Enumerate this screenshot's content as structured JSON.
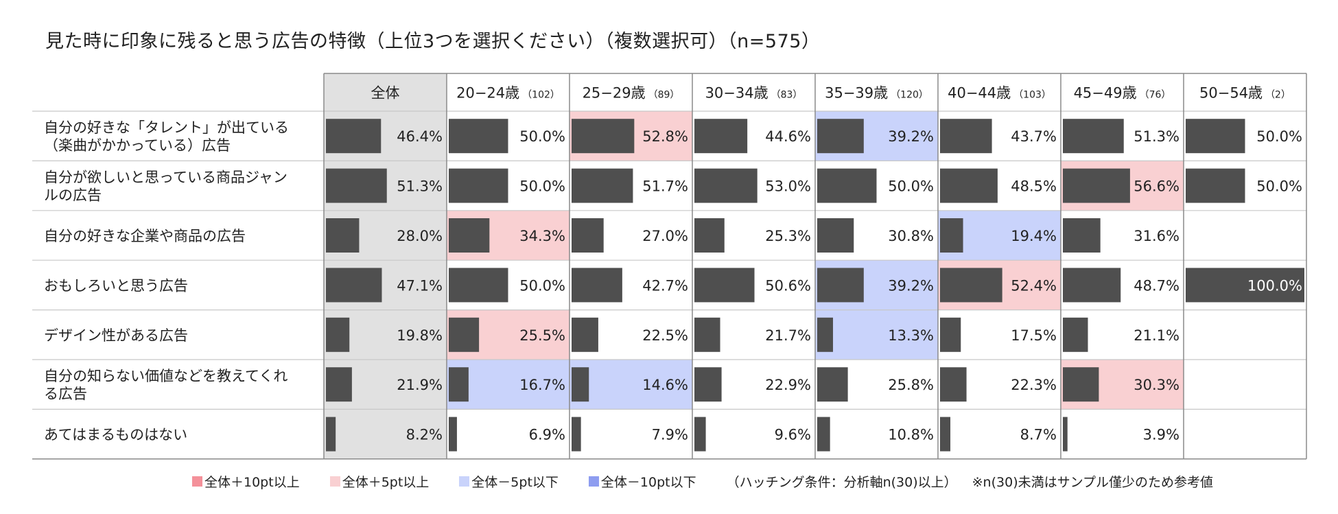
{
  "title": "見た時に印象に残ると思う広告の特徴（上位3つを選択ください）（複数選択可）（n=575）",
  "chart_data": {
    "type": "table",
    "value_unit": "%",
    "columns": [
      {
        "label": "全体",
        "n": ""
      },
      {
        "label": "20−24歳",
        "n": "（102）"
      },
      {
        "label": "25−29歳",
        "n": "（89）"
      },
      {
        "label": "30−34歳",
        "n": "（83）"
      },
      {
        "label": "35−39歳",
        "n": "（120）"
      },
      {
        "label": "40−44歳",
        "n": "（103）"
      },
      {
        "label": "45−49歳",
        "n": "（76）"
      },
      {
        "label": "50−54歳",
        "n": "（2）"
      }
    ],
    "rows": [
      {
        "label": "自分の好きな「タレント」が出ている（楽曲がかかっている）広告",
        "values": [
          46.4,
          50.0,
          52.8,
          44.6,
          39.2,
          43.7,
          51.3,
          50.0
        ]
      },
      {
        "label": "自分が欲しいと思っている商品ジャンルの広告",
        "values": [
          51.3,
          50.0,
          51.7,
          53.0,
          50.0,
          48.5,
          56.6,
          50.0
        ]
      },
      {
        "label": "自分の好きな企業や商品の広告",
        "values": [
          28.0,
          34.3,
          27.0,
          25.3,
          30.8,
          19.4,
          31.6,
          null
        ]
      },
      {
        "label": "おもしろいと思う広告",
        "values": [
          47.1,
          50.0,
          42.7,
          50.6,
          39.2,
          52.4,
          48.7,
          100.0
        ]
      },
      {
        "label": "デザイン性がある広告",
        "values": [
          19.8,
          25.5,
          22.5,
          21.7,
          13.3,
          17.5,
          21.1,
          null
        ]
      },
      {
        "label": "自分の知らない価値などを教えてくれる広告",
        "values": [
          21.9,
          16.7,
          14.6,
          22.9,
          25.8,
          22.3,
          30.3,
          null
        ]
      },
      {
        "label": "あてはまるものはない",
        "values": [
          8.2,
          6.9,
          7.9,
          9.6,
          10.8,
          8.7,
          3.9,
          null
        ]
      }
    ],
    "highlights": [
      {
        "row": 0,
        "col": 2,
        "level": "plus5"
      },
      {
        "row": 0,
        "col": 4,
        "level": "minus5"
      },
      {
        "row": 1,
        "col": 6,
        "level": "plus5"
      },
      {
        "row": 2,
        "col": 1,
        "level": "plus5"
      },
      {
        "row": 2,
        "col": 5,
        "level": "minus5"
      },
      {
        "row": 3,
        "col": 4,
        "level": "minus5"
      },
      {
        "row": 3,
        "col": 5,
        "level": "plus5"
      },
      {
        "row": 4,
        "col": 1,
        "level": "plus5"
      },
      {
        "row": 4,
        "col": 4,
        "level": "minus5"
      },
      {
        "row": 5,
        "col": 1,
        "level": "minus5"
      },
      {
        "row": 5,
        "col": 2,
        "level": "minus5"
      },
      {
        "row": 5,
        "col": 6,
        "level": "plus5"
      }
    ],
    "bar_max": 100
  },
  "colors": {
    "plus10": "#f4919a",
    "plus5": "#f9d0d2",
    "minus5": "#c9d3fb",
    "minus10": "#8e9df0",
    "total_bg": "#e1e1e1",
    "bar": "#4f4f4f",
    "grid": "#c8c8c8",
    "border": "#8a8a8a"
  },
  "legend": {
    "items": [
      {
        "key": "plus10",
        "label": "全体＋10pt以上"
      },
      {
        "key": "plus5",
        "label": "全体＋5pt以上"
      },
      {
        "key": "minus5",
        "label": "全体－5pt以下"
      },
      {
        "key": "minus10",
        "label": "全体－10pt以下"
      }
    ],
    "condition": "（ハッチング条件：分析軸n(30)以上）",
    "note": "※n(30)未満はサンプル僅少のため参考値"
  }
}
